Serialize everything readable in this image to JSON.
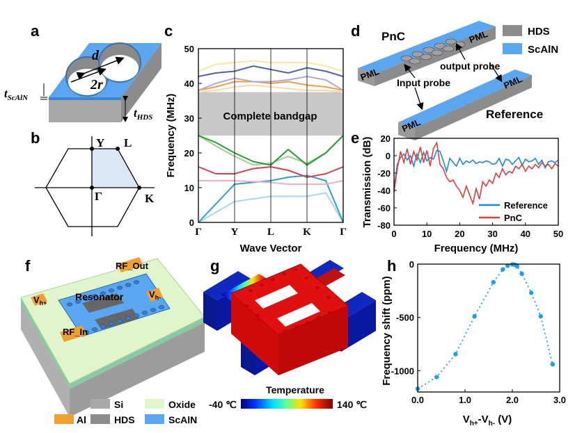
{
  "panels": {
    "a": {
      "letter": "a",
      "labels": {
        "d": "d",
        "two_r": "2r",
        "t_scaln_main": "t",
        "t_scaln_sub": "ScAlN",
        "t_hds_main": "t",
        "t_hds_sub": "HDS"
      }
    },
    "b": {
      "letter": "b",
      "points": {
        "Y": "Y",
        "L": "L",
        "Gamma": "Γ",
        "K": "K"
      }
    },
    "c": {
      "letter": "c",
      "bandgap_label": "Complete bandgap",
      "colors": {
        "gap": "#c8c8c8"
      }
    },
    "d": {
      "letter": "d",
      "title_pnc": "PnC",
      "title_reference": "Reference",
      "pml": "PML",
      "input_probe": "Input probe",
      "output_probe": "output probe",
      "legend": [
        {
          "name": "HDS",
          "color": "#8c8c8c"
        },
        {
          "name": "ScAlN",
          "color": "#5aa6f0"
        }
      ]
    },
    "e": {
      "letter": "e"
    },
    "f": {
      "letter": "f",
      "labels": {
        "rf_out": "RF_Out",
        "rf_in": "RF_In",
        "vh_plus_main": "V",
        "vh_plus_sub": "h+",
        "vh_minus_main": "V",
        "vh_minus_sub": "h-",
        "resonator": "Resonator"
      },
      "legend": [
        {
          "name": "Si",
          "color": "#a8a8a8"
        },
        {
          "name": "Oxide",
          "color": "#e0f5cc"
        },
        {
          "name": "Al",
          "color": "#f0a030"
        },
        {
          "name": "HDS",
          "color": "#8c8c8c"
        },
        {
          "name": "ScAlN",
          "color": "#5aa6f0"
        }
      ]
    },
    "g": {
      "letter": "g",
      "colorbar_title": "Temperature",
      "colorbar_min": "-40 ℃",
      "colorbar_max": "140 ℃"
    },
    "h": {
      "letter": "h"
    }
  },
  "chart_data": [
    {
      "panel": "c",
      "type": "line",
      "xlabel": "Wave Vector",
      "ylabel": "Frequency (MHz)",
      "ylim": [
        0,
        50
      ],
      "yticks": [
        0,
        10,
        20,
        30,
        40,
        50
      ],
      "x_ticks": [
        "Γ",
        "Y",
        "L",
        "K",
        "Γ"
      ],
      "bandgap": [
        25,
        37.5
      ],
      "series": [
        {
          "color": "#a8d8f0",
          "x": [
            0,
            0.25,
            0.5,
            0.62,
            0.75,
            0.88,
            1.0
          ],
          "values": [
            0,
            6,
            7.5,
            7.5,
            7.5,
            8.5,
            0
          ]
        },
        {
          "color": "#2aa0d0",
          "x": [
            0,
            0.25,
            0.5,
            0.62,
            0.75,
            0.88,
            1.0
          ],
          "values": [
            0,
            11,
            12,
            13,
            13.5,
            12,
            0
          ]
        },
        {
          "color": "#f0b0c0",
          "x": [
            0,
            0.25,
            0.5,
            0.62,
            0.75,
            0.88,
            1.0
          ],
          "values": [
            12,
            12,
            11.5,
            11,
            11,
            11,
            12
          ]
        },
        {
          "color": "#d84050",
          "x": [
            0,
            0.12,
            0.25,
            0.38,
            0.5,
            0.62,
            0.75,
            0.88,
            1.0
          ],
          "values": [
            16,
            14,
            14,
            15.5,
            16,
            15,
            13,
            14,
            16
          ]
        },
        {
          "color": "#a0d090",
          "x": [
            0,
            0.12,
            0.25,
            0.38,
            0.5,
            0.62,
            0.75,
            0.88,
            1.0
          ],
          "values": [
            25,
            22,
            19,
            16.5,
            17,
            19,
            17,
            20,
            25
          ]
        },
        {
          "color": "#2a9a3a",
          "x": [
            0,
            0.12,
            0.25,
            0.38,
            0.5,
            0.62,
            0.75,
            0.88,
            1.0
          ],
          "values": [
            25,
            23,
            20,
            17.5,
            16.5,
            21,
            16.5,
            20,
            25
          ]
        },
        {
          "color": "#f0a040",
          "x": [
            0,
            0.12,
            0.25,
            0.38,
            0.5,
            0.62,
            0.75,
            0.88,
            1.0
          ],
          "values": [
            38,
            39,
            40.5,
            40.5,
            40,
            40.5,
            39.5,
            39,
            38
          ]
        },
        {
          "color": "#f8d8a8",
          "x": [
            0,
            0.12,
            0.25,
            0.38,
            0.5,
            0.62,
            0.75,
            0.88,
            1.0
          ],
          "values": [
            37.5,
            38,
            39,
            39.5,
            39,
            38.5,
            38,
            38,
            37.5
          ]
        },
        {
          "color": "#b0a8d8",
          "x": [
            0,
            0.12,
            0.25,
            0.38,
            0.5,
            0.62,
            0.75,
            0.88,
            1.0
          ],
          "values": [
            38,
            40,
            41.5,
            40.5,
            40.5,
            41,
            42,
            41,
            38
          ]
        },
        {
          "color": "#5060b0",
          "x": [
            0,
            0.12,
            0.25,
            0.38,
            0.5,
            0.62,
            0.75,
            0.88,
            1.0
          ],
          "values": [
            42,
            43,
            43.5,
            45,
            44,
            43,
            44.5,
            43.5,
            42
          ]
        },
        {
          "color": "#f8e8a8",
          "x": [
            0,
            0.12,
            0.25,
            0.38,
            0.5,
            0.62,
            0.75,
            0.88,
            1.0
          ],
          "values": [
            43.5,
            45.5,
            46,
            46.5,
            46,
            46,
            46,
            45,
            43.5
          ]
        }
      ]
    },
    {
      "panel": "e",
      "type": "line",
      "xlabel": "Frequency (MHz)",
      "ylabel": "Transmission (dB)",
      "xlim": [
        0,
        50
      ],
      "ylim": [
        -80,
        20
      ],
      "xticks": [
        0,
        10,
        20,
        30,
        40,
        50
      ],
      "yticks": [
        -80,
        -60,
        -40,
        -20,
        0,
        20
      ],
      "legend_position": "bottom-right",
      "series": [
        {
          "name": "Reference",
          "color": "#1a8ad4",
          "x": [
            0,
            1,
            2,
            3,
            4,
            5,
            6,
            7,
            8,
            9,
            10,
            11,
            12,
            13,
            14,
            15,
            16,
            17,
            18,
            19,
            20,
            21,
            22,
            23,
            24,
            25,
            26,
            27,
            28,
            29,
            30,
            31,
            32,
            33,
            34,
            35,
            36,
            37,
            38,
            39,
            40,
            41,
            42,
            43,
            44,
            45,
            46,
            47,
            48,
            49,
            50
          ],
          "values": [
            -38,
            -10,
            -2,
            2,
            -5,
            0,
            -12,
            2,
            -8,
            4,
            -6,
            -2,
            -4,
            6,
            5,
            -6,
            -18,
            -3,
            -8,
            -12,
            -3,
            -10,
            -6,
            -8,
            -5,
            -9,
            -7,
            -8,
            -6,
            -7,
            -10,
            -9,
            -3,
            -12,
            -4,
            -5,
            -10,
            -6,
            -2,
            -11,
            -4,
            -7,
            -6,
            -3,
            -10,
            -5,
            -14,
            -7,
            -6,
            -8,
            -5
          ]
        },
        {
          "name": "PnC",
          "color": "#d84040",
          "x": [
            0,
            1,
            2,
            3,
            4,
            5,
            6,
            7,
            8,
            9,
            10,
            11,
            12,
            13,
            14,
            15,
            16,
            17,
            18,
            19,
            20,
            21,
            22,
            23,
            24,
            25,
            26,
            27,
            28,
            29,
            30,
            31,
            32,
            33,
            34,
            35,
            36,
            37,
            38,
            39,
            40,
            41,
            42,
            43,
            44,
            45,
            46,
            47,
            48,
            49,
            50
          ],
          "values": [
            -42,
            -15,
            5,
            -8,
            8,
            -10,
            5,
            -5,
            10,
            -8,
            6,
            -12,
            8,
            15,
            -10,
            -15,
            -25,
            -30,
            -28,
            -35,
            -40,
            -48,
            -35,
            -45,
            -55,
            -38,
            -50,
            -30,
            -35,
            -28,
            -32,
            -20,
            -25,
            -15,
            -22,
            -18,
            -20,
            -12,
            -15,
            -10,
            -18,
            -12,
            -15,
            -10,
            -14,
            -8,
            -12,
            -10,
            -15,
            -9,
            -12
          ]
        }
      ]
    },
    {
      "panel": "h",
      "type": "scatter",
      "xlabel_main": "V",
      "xlabel_sub1": "h+",
      "xlabel_mid": "-V",
      "xlabel_sub2": "h-",
      "xlabel_unit": " (V)",
      "ylabel": "Frequency shift (ppm)",
      "xlim": [
        0,
        3.0
      ],
      "ylim": [
        -1200,
        0
      ],
      "xticks": [
        0.0,
        1.0,
        2.0,
        3.0
      ],
      "yticks": [
        0,
        -500,
        -1000
      ],
      "series": [
        {
          "color": "#1ea0e8",
          "x": [
            0.0,
            0.4,
            0.8,
            1.2,
            1.6,
            1.8,
            1.9,
            2.0,
            2.05,
            2.1,
            2.2,
            2.4,
            2.6,
            2.85
          ],
          "values": [
            -1170,
            -1060,
            -845,
            -490,
            -170,
            -50,
            -15,
            -3,
            -5,
            -20,
            -90,
            -270,
            -490,
            -940
          ]
        }
      ]
    }
  ]
}
